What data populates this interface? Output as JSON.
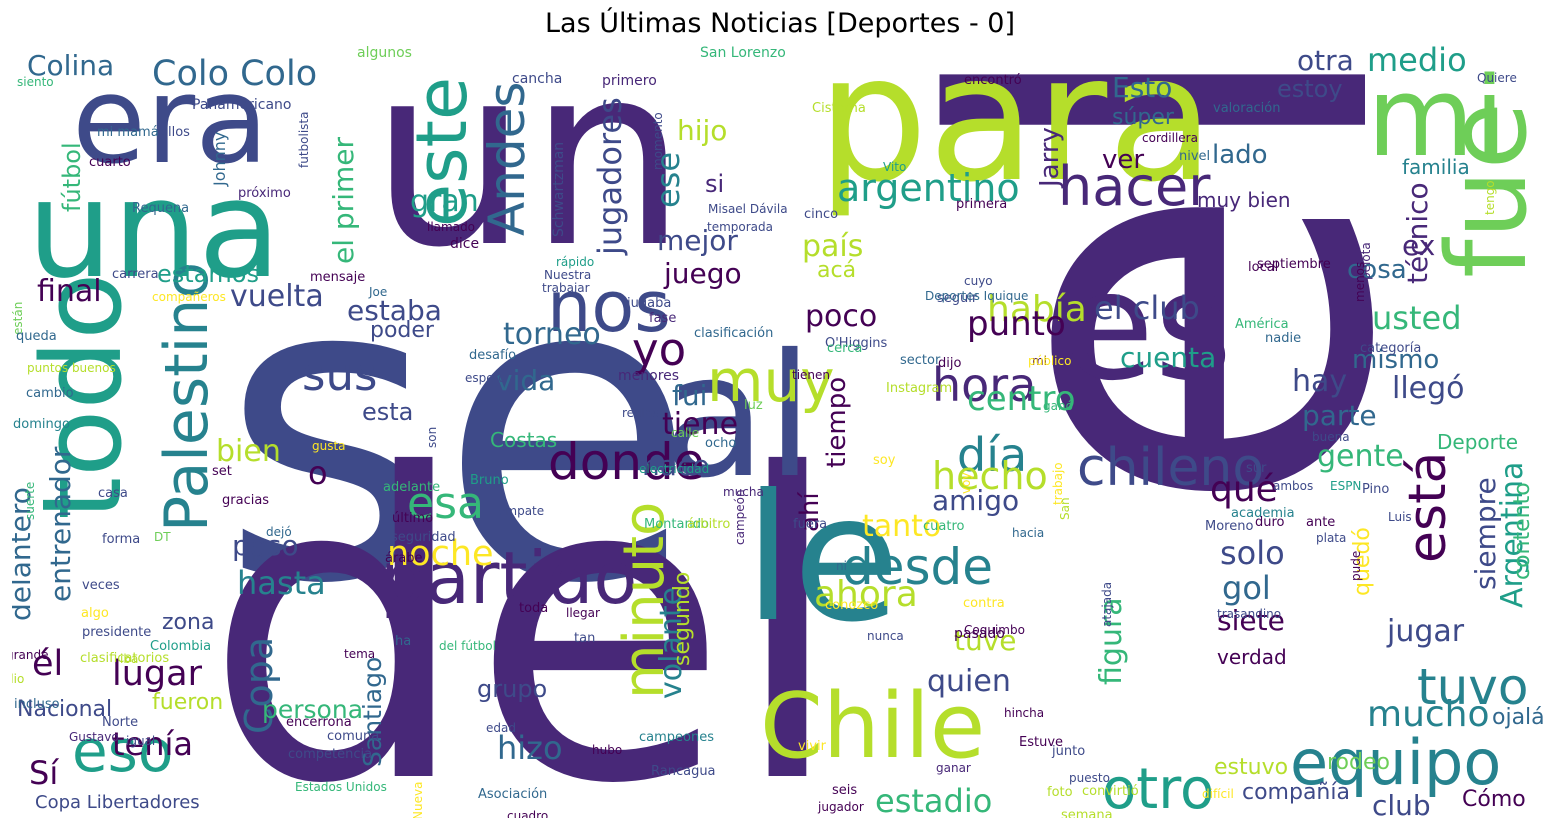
{
  "title": "Las Últimas Noticias [Deportes - 0]",
  "palette": [
    "#440154",
    "#482878",
    "#3e4a89",
    "#31688e",
    "#26828e",
    "#1f9e89",
    "#35b779",
    "#6ece58",
    "#b5de2b",
    "#fde725"
  ],
  "words": [
    {
      "t": "se",
      "c": "#3e4a89"
    },
    {
      "t": "un",
      "c": "#482878"
    },
    {
      "t": "del",
      "c": "#482878"
    },
    {
      "t": "el",
      "c": "#482878"
    },
    {
      "t": "para",
      "c": "#b5de2b"
    },
    {
      "t": "le",
      "c": "#26828e"
    },
    {
      "t": "al",
      "c": "#3e4a89"
    },
    {
      "t": "es",
      "c": "#482878"
    },
    {
      "t": "una",
      "c": "#1f9e89"
    },
    {
      "t": "era",
      "c": "#3e4a89"
    },
    {
      "t": "mi",
      "c": "#6ece58"
    },
    {
      "t": "fue",
      "c": "#6ece58"
    },
    {
      "t": "todo",
      "c": "#1f9e89"
    },
    {
      "t": "Chile",
      "c": "#b5de2b"
    },
    {
      "t": "nos",
      "c": "#3e4a89"
    },
    {
      "t": "este",
      "c": "#1f9e89"
    },
    {
      "t": "partido",
      "c": "#482878"
    },
    {
      "t": "muy",
      "c": "#b5de2b"
    },
    {
      "t": "chileno",
      "c": "#3e4a89"
    },
    {
      "t": "hacer",
      "c": "#482878"
    },
    {
      "t": "Palestino",
      "c": "#26828e"
    },
    {
      "t": "eso",
      "c": "#1f9e89"
    },
    {
      "t": "donde",
      "c": "#440154"
    },
    {
      "t": "desde",
      "c": "#26828e"
    },
    {
      "t": "equipo",
      "c": "#26828e"
    },
    {
      "t": "tuvo",
      "c": "#26828e"
    },
    {
      "t": "otro",
      "c": "#1f9e89"
    },
    {
      "t": "hora",
      "c": "#482878"
    },
    {
      "t": "Andes",
      "c": "#31688e"
    },
    {
      "t": "está",
      "c": "#440154"
    },
    {
      "t": "minuto",
      "c": "#b5de2b"
    },
    {
      "t": "día",
      "c": "#26828e"
    },
    {
      "t": "Colo Colo",
      "c": "#31688e"
    },
    {
      "t": "sus",
      "c": "#3e4a89"
    },
    {
      "t": "yo",
      "c": "#440154"
    },
    {
      "t": "argentino",
      "c": "#1f9e89"
    },
    {
      "t": "Copa",
      "c": "#31688e"
    },
    {
      "t": "Colina",
      "c": "#31688e"
    },
    {
      "t": "medio",
      "c": "#1f9e89"
    },
    {
      "t": "estoy",
      "c": "#3e4a89"
    },
    {
      "t": "otra",
      "c": "#3e4a89"
    },
    {
      "t": "Esto",
      "c": "#31688e"
    },
    {
      "t": "súper",
      "c": "#31688e"
    },
    {
      "t": "jugadores",
      "c": "#3e4a89"
    },
    {
      "t": "el primer",
      "c": "#35b779"
    },
    {
      "t": "fútbol",
      "c": "#35b779"
    },
    {
      "t": "Jarry",
      "c": "#482878"
    },
    {
      "t": "ver",
      "c": "#440154"
    },
    {
      "t": "hijo",
      "c": "#b5de2b"
    },
    {
      "t": "ese",
      "c": "#26828e"
    },
    {
      "t": "si",
      "c": "#482878"
    },
    {
      "t": "gran",
      "c": "#1f9e89"
    },
    {
      "t": "lado",
      "c": "#31688e"
    },
    {
      "t": "muy bien",
      "c": "#482878"
    },
    {
      "t": "familia",
      "c": "#26828e"
    },
    {
      "t": "técnico",
      "c": "#482878"
    },
    {
      "t": "mejor",
      "c": "#3e4a89"
    },
    {
      "t": "país",
      "c": "#b5de2b"
    },
    {
      "t": "ex",
      "c": "#482878"
    },
    {
      "t": "cosa",
      "c": "#31688e"
    },
    {
      "t": "juego",
      "c": "#440154"
    },
    {
      "t": "acá",
      "c": "#b5de2b"
    },
    {
      "t": "estamos",
      "c": "#1f9e89"
    },
    {
      "t": "final",
      "c": "#440154"
    },
    {
      "t": "vuelta",
      "c": "#3e4a89"
    },
    {
      "t": "estaba",
      "c": "#3e4a89"
    },
    {
      "t": "torneo",
      "c": "#31688e"
    },
    {
      "t": "había",
      "c": "#b5de2b"
    },
    {
      "t": "el club",
      "c": "#3e4a89"
    },
    {
      "t": "usted",
      "c": "#35b779"
    },
    {
      "t": "poco",
      "c": "#440154"
    },
    {
      "t": "punto",
      "c": "#440154"
    },
    {
      "t": "poder",
      "c": "#3e4a89"
    },
    {
      "t": "cuenta",
      "c": "#1f9e89"
    },
    {
      "t": "mismo",
      "c": "#31688e"
    },
    {
      "t": "hay",
      "c": "#3e4a89"
    },
    {
      "t": "vida",
      "c": "#31688e"
    },
    {
      "t": "fui",
      "c": "#31688e"
    },
    {
      "t": "llegó",
      "c": "#3e4a89"
    },
    {
      "t": "centro",
      "c": "#35b779"
    },
    {
      "t": "parte",
      "c": "#31688e"
    },
    {
      "t": "esta",
      "c": "#3e4a89"
    },
    {
      "t": "tiene",
      "c": "#440154"
    },
    {
      "t": "tiempo",
      "c": "#440154"
    },
    {
      "t": "gente",
      "c": "#35b779"
    },
    {
      "t": "Deporte",
      "c": "#35b779"
    },
    {
      "t": "Costas",
      "c": "#35b779"
    },
    {
      "t": "bien",
      "c": "#b5de2b"
    },
    {
      "t": "hace",
      "c": "#3e4a89"
    },
    {
      "t": "hecho",
      "c": "#b5de2b"
    },
    {
      "t": "qué",
      "c": "#440154"
    },
    {
      "t": "Argentina",
      "c": "#1f9e89"
    },
    {
      "t": "o",
      "c": "#440154"
    },
    {
      "t": "esa",
      "c": "#35b779"
    },
    {
      "t": "amigo",
      "c": "#3e4a89"
    },
    {
      "t": "siempre",
      "c": "#3e4a89"
    },
    {
      "t": "entrenador",
      "c": "#31688e"
    },
    {
      "t": "delantero",
      "c": "#31688e"
    },
    {
      "t": "tanto",
      "c": "#fde725"
    },
    {
      "t": "noche",
      "c": "#fde725"
    },
    {
      "t": "ahí",
      "c": "#440154"
    },
    {
      "t": "solo",
      "c": "#3e4a89"
    },
    {
      "t": "paso",
      "c": "#3e4a89"
    },
    {
      "t": "hasta",
      "c": "#26828e"
    },
    {
      "t": "ahora",
      "c": "#b5de2b"
    },
    {
      "t": "quedó",
      "c": "#fde725"
    },
    {
      "t": "gol",
      "c": "#31688e"
    },
    {
      "t": "zona",
      "c": "#3e4a89"
    },
    {
      "t": "siete",
      "c": "#440154"
    },
    {
      "t": "figura",
      "c": "#35b779"
    },
    {
      "t": "jugar",
      "c": "#3e4a89"
    },
    {
      "t": "contento",
      "c": "#35b779"
    },
    {
      "t": "volante",
      "c": "#26828e"
    },
    {
      "t": "segundo",
      "c": "#b5de2b"
    },
    {
      "t": "tuve",
      "c": "#b5de2b"
    },
    {
      "t": "quien",
      "c": "#3e4a89"
    },
    {
      "t": "lugar",
      "c": "#440154"
    },
    {
      "t": "él",
      "c": "#440154"
    },
    {
      "t": "Santiago",
      "c": "#31688e"
    },
    {
      "t": "persona",
      "c": "#35b779"
    },
    {
      "t": "verdad",
      "c": "#440154"
    },
    {
      "t": "fueron",
      "c": "#b5de2b"
    },
    {
      "t": "grupo",
      "c": "#3e4a89"
    },
    {
      "t": "mucho",
      "c": "#26828e"
    },
    {
      "t": "Nacional",
      "c": "#3e4a89"
    },
    {
      "t": "tenía",
      "c": "#440154"
    },
    {
      "t": "hizo",
      "c": "#31688e"
    },
    {
      "t": "Sí",
      "c": "#440154"
    },
    {
      "t": "ojalá",
      "c": "#31688e"
    },
    {
      "t": "rodeo",
      "c": "#6ece58"
    },
    {
      "t": "estadio",
      "c": "#35b779"
    },
    {
      "t": "compañía",
      "c": "#3e4a89"
    },
    {
      "t": "club",
      "c": "#3e4a89"
    },
    {
      "t": "Cómo",
      "c": "#440154"
    },
    {
      "t": "estuvo",
      "c": "#b5de2b"
    },
    {
      "t": "Copa Libertadores",
      "c": "#3e4a89"
    },
    {
      "t": "cancha",
      "c": "#3e4a89"
    },
    {
      "t": "primero",
      "c": "#482878"
    },
    {
      "t": "San Lorenzo",
      "c": "#35b779"
    },
    {
      "t": "algunos",
      "c": "#6ece58"
    },
    {
      "t": "siento",
      "c": "#35b779"
    },
    {
      "t": "Panamericano",
      "c": "#3e4a89"
    },
    {
      "t": "mi mamá",
      "c": "#31688e"
    },
    {
      "t": "ellos",
      "c": "#3e4a89"
    },
    {
      "t": "cuarto",
      "c": "#440154"
    },
    {
      "t": "Johnny",
      "c": "#31688e"
    },
    {
      "t": "futbolista",
      "c": "#3e4a89"
    },
    {
      "t": "Schwartzman",
      "c": "#3e4a89"
    },
    {
      "t": "momento",
      "c": "#3e4a89"
    },
    {
      "t": "próximo",
      "c": "#482878"
    },
    {
      "t": "Requena",
      "c": "#31688e"
    },
    {
      "t": "llamado",
      "c": "#440154"
    },
    {
      "t": "dice",
      "c": "#440154"
    },
    {
      "t": "rápido",
      "c": "#1f9e89"
    },
    {
      "t": "Nuestra",
      "c": "#3e4a89"
    },
    {
      "t": "trabajar",
      "c": "#3e4a89"
    },
    {
      "t": "están",
      "c": "#6ece58"
    },
    {
      "t": "carrera",
      "c": "#3e4a89"
    },
    {
      "t": "compañeros",
      "c": "#fde725"
    },
    {
      "t": "mensaje",
      "c": "#440154"
    },
    {
      "t": "Joe",
      "c": "#31688e"
    },
    {
      "t": "jugaba",
      "c": "#3e4a89"
    },
    {
      "t": "fase",
      "c": "#482878"
    },
    {
      "t": "clasificación",
      "c": "#31688e"
    },
    {
      "t": "O'Higgins",
      "c": "#3e4a89"
    },
    {
      "t": "desafío",
      "c": "#31688e"
    },
    {
      "t": "cerca",
      "c": "#35b779"
    },
    {
      "t": "sector",
      "c": "#31688e"
    },
    {
      "t": "mi",
      "c": "#440154"
    },
    {
      "t": "público",
      "c": "#fde725"
    },
    {
      "t": "espero",
      "c": "#3e4a89"
    },
    {
      "t": "menores",
      "c": "#482878"
    },
    {
      "t": "tienen",
      "c": "#440154"
    },
    {
      "t": "dijo",
      "c": "#440154"
    },
    {
      "t": "reglas",
      "c": "#3e4a89"
    },
    {
      "t": "luz",
      "c": "#6ece58"
    },
    {
      "t": "Instagram",
      "c": "#b5de2b"
    },
    {
      "t": "ganó",
      "c": "#35b779"
    },
    {
      "t": "Cisterna",
      "c": "#b5de2b"
    },
    {
      "t": "encontró",
      "c": "#440154"
    },
    {
      "t": "valoración",
      "c": "#31688e"
    },
    {
      "t": "cordillera",
      "c": "#440154"
    },
    {
      "t": "nivel",
      "c": "#31688e"
    },
    {
      "t": "Quiere",
      "c": "#3e4a89"
    },
    {
      "t": "pelota",
      "c": "#482878"
    },
    {
      "t": "Vito",
      "c": "#1f9e89"
    },
    {
      "t": "primera",
      "c": "#440154"
    },
    {
      "t": "temporada",
      "c": "#3e4a89"
    },
    {
      "t": "Misael Dávila",
      "c": "#3e4a89"
    },
    {
      "t": "cinco",
      "c": "#3e4a89"
    },
    {
      "t": "cuyo",
      "c": "#3e4a89"
    },
    {
      "t": "seguir",
      "c": "#3e4a89"
    },
    {
      "t": "Deportes Iquique",
      "c": "#31688e"
    },
    {
      "t": "septiembre",
      "c": "#440154"
    },
    {
      "t": "local",
      "c": "#440154"
    },
    {
      "t": "menos",
      "c": "#440154"
    },
    {
      "t": "tengo",
      "c": "#b5de2b"
    },
    {
      "t": "América",
      "c": "#35b779"
    },
    {
      "t": "nadie",
      "c": "#31688e"
    },
    {
      "t": "categoría",
      "c": "#3e4a89"
    },
    {
      "t": "queda",
      "c": "#31688e"
    },
    {
      "t": "puntos buenos",
      "c": "#b5de2b"
    },
    {
      "t": "cambio",
      "c": "#31688e"
    },
    {
      "t": "domingo",
      "c": "#26828e"
    },
    {
      "t": "suerte",
      "c": "#35b779"
    },
    {
      "t": "casa",
      "c": "#3e4a89"
    },
    {
      "t": "forma",
      "c": "#3e4a89"
    },
    {
      "t": "veces",
      "c": "#3e4a89"
    },
    {
      "t": "algo",
      "c": "#fde725"
    },
    {
      "t": "presidente",
      "c": "#3e4a89"
    },
    {
      "t": "grande",
      "c": "#440154"
    },
    {
      "t": "dio",
      "c": "#b5de2b"
    },
    {
      "t": "incluso",
      "c": "#31688e"
    },
    {
      "t": "gusta",
      "c": "#fde725"
    },
    {
      "t": "son",
      "c": "#3e4a89"
    },
    {
      "t": "set",
      "c": "#440154"
    },
    {
      "t": "gracias",
      "c": "#440154"
    },
    {
      "t": "dejó",
      "c": "#31688e"
    },
    {
      "t": "adelante",
      "c": "#35b779"
    },
    {
      "t": "último",
      "c": "#440154"
    },
    {
      "t": "seguridad",
      "c": "#3e4a89"
    },
    {
      "t": "Bruno",
      "c": "#1f9e89"
    },
    {
      "t": "empate",
      "c": "#3e4a89"
    },
    {
      "t": "árabe",
      "c": "#440154"
    },
    {
      "t": "fe",
      "c": "#3e4a89"
    },
    {
      "t": "clasificatorios",
      "c": "#b5de2b"
    },
    {
      "t": "iba",
      "c": "#b5de2b"
    },
    {
      "t": "Colombia",
      "c": "#1f9e89"
    },
    {
      "t": "DT",
      "c": "#6ece58"
    },
    {
      "t": "Gustavo",
      "c": "#482878"
    },
    {
      "t": "igual",
      "c": "#3e4a89"
    },
    {
      "t": "Norte",
      "c": "#3e4a89"
    },
    {
      "t": "comuna",
      "c": "#3e4a89"
    },
    {
      "t": "encerrona",
      "c": "#440154"
    },
    {
      "t": "competencia",
      "c": "#3e4a89"
    },
    {
      "t": "Estados Unidos",
      "c": "#35b779"
    },
    {
      "t": "vehículo",
      "c": "#fde725"
    },
    {
      "t": "Nueva",
      "c": "#fde725"
    },
    {
      "t": "edad",
      "c": "#3e4a89"
    },
    {
      "t": "Asociación",
      "c": "#31688e"
    },
    {
      "t": "cuadro",
      "c": "#440154"
    },
    {
      "t": "fin",
      "c": "#440154"
    },
    {
      "t": "calle",
      "c": "#6ece58"
    },
    {
      "t": "ocho",
      "c": "#31688e"
    },
    {
      "t": "electricidad",
      "c": "#1f9e89"
    },
    {
      "t": "mucha",
      "c": "#482878"
    },
    {
      "t": "campeón",
      "c": "#482878"
    },
    {
      "t": "Montando",
      "c": "#35b779"
    },
    {
      "t": "árbitro",
      "c": "#b5de2b"
    },
    {
      "t": "fuera",
      "c": "#3e4a89"
    },
    {
      "t": "cuatro",
      "c": "#35b779"
    },
    {
      "t": "ni",
      "c": "#31688e"
    },
    {
      "t": "conozco",
      "c": "#fde725"
    },
    {
      "t": "contra",
      "c": "#fde725"
    },
    {
      "t": "Coquimbo",
      "c": "#440154"
    },
    {
      "t": "nunca",
      "c": "#3e4a89"
    },
    {
      "t": "del fútbol",
      "c": "#35b779"
    },
    {
      "t": "tema",
      "c": "#440154"
    },
    {
      "t": "toda",
      "c": "#440154"
    },
    {
      "t": "llegar",
      "c": "#440154"
    },
    {
      "t": "tan",
      "c": "#3e4a89"
    },
    {
      "t": "ha",
      "c": "#31688e"
    },
    {
      "t": "campeones",
      "c": "#26828e"
    },
    {
      "t": "Rancagua",
      "c": "#3e4a89"
    },
    {
      "t": "hubo",
      "c": "#440154"
    },
    {
      "t": "vivir",
      "c": "#fde725"
    },
    {
      "t": "seis",
      "c": "#440154"
    },
    {
      "t": "jugador",
      "c": "#440154"
    },
    {
      "t": "ganar",
      "c": "#482878"
    },
    {
      "t": "hincha",
      "c": "#440154"
    },
    {
      "t": "Estuve",
      "c": "#440154"
    },
    {
      "t": "junto",
      "c": "#3e4a89"
    },
    {
      "t": "puesto",
      "c": "#3e4a89"
    },
    {
      "t": "foto",
      "c": "#b5de2b"
    },
    {
      "t": "semana",
      "c": "#b5de2b"
    },
    {
      "t": "convirtió",
      "c": "#b5de2b"
    },
    {
      "t": "difícil",
      "c": "#fde725"
    },
    {
      "t": "pasado",
      "c": "#440154"
    },
    {
      "t": "soy",
      "c": "#fde725"
    },
    {
      "t": "voy",
      "c": "#fde725"
    },
    {
      "t": "trabajo",
      "c": "#fde725"
    },
    {
      "t": "San",
      "c": "#b5de2b"
    },
    {
      "t": "sur",
      "c": "#3e4a89"
    },
    {
      "t": "academia",
      "c": "#26828e"
    },
    {
      "t": "hacia",
      "c": "#31688e"
    },
    {
      "t": "Moreno",
      "c": "#3e4a89"
    },
    {
      "t": "duro",
      "c": "#440154"
    },
    {
      "t": "buena",
      "c": "#3e4a89"
    },
    {
      "t": "ambos",
      "c": "#3e4a89"
    },
    {
      "t": "ESPN",
      "c": "#1f9e89"
    },
    {
      "t": "Pino",
      "c": "#3e4a89"
    },
    {
      "t": "Luis",
      "c": "#3e4a89"
    },
    {
      "t": "ante",
      "c": "#440154"
    },
    {
      "t": "plata",
      "c": "#3e4a89"
    },
    {
      "t": "pude",
      "c": "#440154"
    },
    {
      "t": "atajada",
      "c": "#3e4a89"
    },
    {
      "t": "trasandino",
      "c": "#3e4a89"
    }
  ]
}
